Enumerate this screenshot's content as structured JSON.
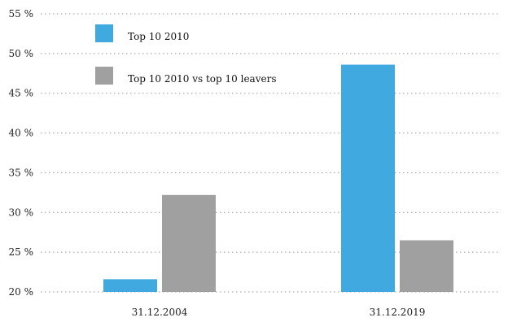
{
  "chart_data": {
    "type": "bar",
    "categories": [
      "31.12.2004",
      "31.12.2019"
    ],
    "series": [
      {
        "name": "Top 10 2010",
        "values": [
          21.6,
          48.6
        ],
        "color": "#3fa9e0"
      },
      {
        "name": "Top 10 2010 vs top 10 leavers",
        "values": [
          32.2,
          26.5
        ],
        "color": "#a0a0a0"
      }
    ],
    "title": "",
    "xlabel": "",
    "ylabel": "",
    "ylim": [
      20,
      55
    ],
    "yticks": [
      20,
      25,
      30,
      35,
      40,
      45,
      50,
      55
    ],
    "ytick_labels": [
      "20 %",
      "25 %",
      "30 %",
      "35 %",
      "40 %",
      "45 %",
      "50 %",
      "55 %"
    ],
    "grid": true,
    "grid_style": "dotted",
    "legend_position": "top-left"
  }
}
